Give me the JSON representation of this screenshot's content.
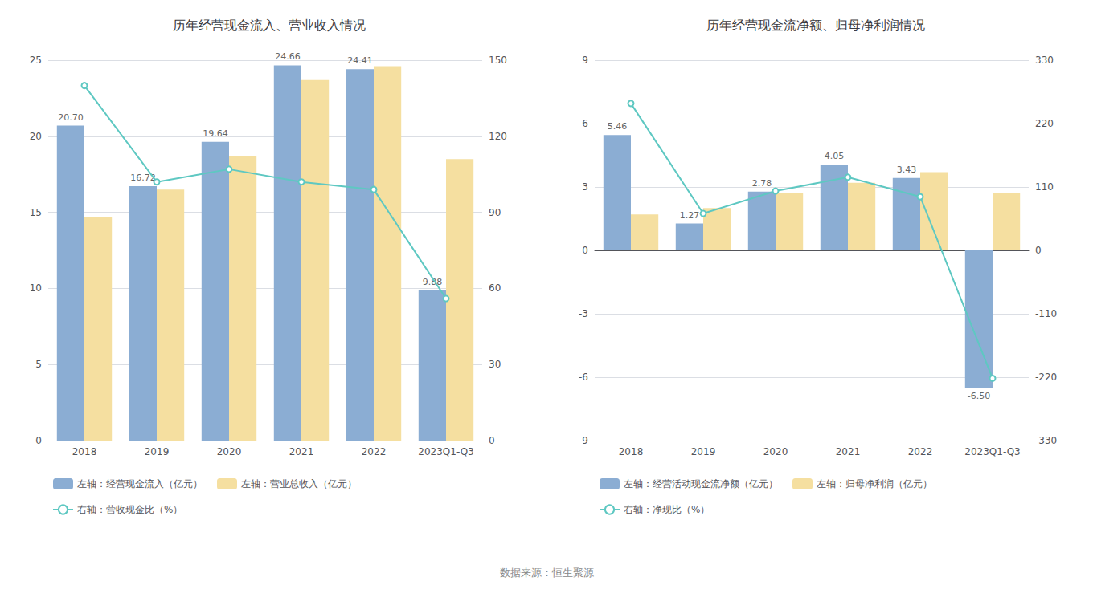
{
  "chart_data": [
    {
      "type": "bar",
      "title": "历年经营现金流入、营业收入情况",
      "categories": [
        "2018",
        "2019",
        "2020",
        "2021",
        "2022",
        "2023Q1-Q3"
      ],
      "series": [
        {
          "name": "左轴：经营现金流入（亿元）",
          "color": "#8BADD3",
          "values": [
            20.7,
            16.72,
            19.64,
            24.66,
            24.41,
            9.88
          ],
          "data_labels": true,
          "value_labels": [
            "20.70",
            "16.72",
            "19.64",
            "24.66",
            "24.41",
            "9.88"
          ]
        },
        {
          "name": "左轴：营业总收入（亿元）",
          "color": "#F5DFA0",
          "values": [
            14.7,
            16.5,
            18.7,
            23.7,
            24.6,
            18.5
          ]
        },
        {
          "name": "右轴：营收现金比（%）",
          "type": "line",
          "axis": "y2",
          "color": "#5EC8C2",
          "marker": "circle",
          "values": [
            140,
            102,
            107,
            102,
            99,
            56
          ]
        }
      ],
      "ylim": [
        0,
        25
      ],
      "yticks": [
        0,
        5,
        10,
        15,
        20,
        25
      ],
      "y2lim": [
        0,
        150
      ],
      "y2ticks": [
        0,
        30,
        60,
        90,
        120,
        150
      ],
      "grid": true,
      "legend": "lower left"
    },
    {
      "type": "bar",
      "title": "历年经营现金流净额、归母净利润情况",
      "categories": [
        "2018",
        "2019",
        "2020",
        "2021",
        "2022",
        "2023Q1-Q3"
      ],
      "series": [
        {
          "name": "左轴：经营活动现金流净额（亿元）",
          "color": "#8BADD3",
          "values": [
            5.46,
            1.27,
            2.78,
            4.05,
            3.43,
            -6.5
          ],
          "data_labels": true,
          "value_labels": [
            "5.46",
            "1.27",
            "2.78",
            "4.05",
            "3.43",
            "-6.50"
          ]
        },
        {
          "name": "左轴：归母净利润（亿元）",
          "color": "#F5DFA0",
          "values": [
            1.7,
            2.0,
            2.7,
            3.2,
            3.7,
            2.7
          ]
        },
        {
          "name": "右轴：净现比（%）",
          "type": "line",
          "axis": "y2",
          "color": "#5EC8C2",
          "marker": "circle",
          "values": [
            255,
            64,
            103,
            127,
            93,
            -222
          ]
        }
      ],
      "ylim": [
        -9,
        9
      ],
      "yticks": [
        -9,
        -6,
        -3,
        0,
        3,
        6,
        9
      ],
      "y2lim": [
        -330,
        330
      ],
      "y2ticks": [
        -330,
        -220,
        -110,
        0,
        110,
        220,
        330
      ],
      "grid": true,
      "legend": "lower left"
    }
  ],
  "annotations": [
    "数据来源：恒生聚源"
  ]
}
